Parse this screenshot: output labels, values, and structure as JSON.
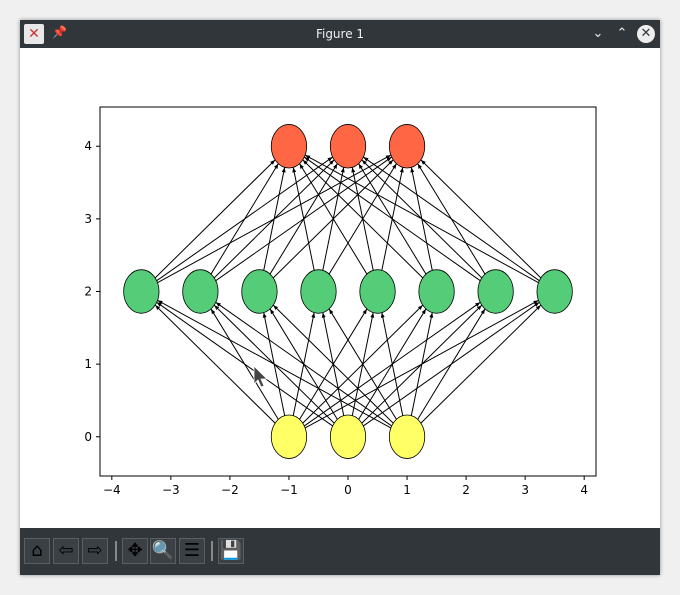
{
  "window": {
    "title": "Figure 1",
    "icons": [
      "matplotlib-app-icon",
      "pin-icon",
      "minimize-icon",
      "maximize-icon",
      "close-icon"
    ]
  },
  "toolbar": {
    "buttons": [
      {
        "name": "home",
        "icon": "home-icon",
        "glyph": "⌂"
      },
      {
        "name": "back",
        "icon": "arrow-left-icon",
        "glyph": "⇦"
      },
      {
        "name": "forward",
        "icon": "arrow-right-icon",
        "glyph": "⇨"
      },
      {
        "name": "pan",
        "icon": "move-icon",
        "glyph": "✥"
      },
      {
        "name": "zoom",
        "icon": "magnifier-icon",
        "glyph": "🔍"
      },
      {
        "name": "configure-subplots",
        "icon": "sliders-icon",
        "glyph": "☰"
      },
      {
        "name": "save",
        "icon": "floppy-disk-icon",
        "glyph": "💾"
      }
    ]
  },
  "chart_data": {
    "type": "diagram",
    "xlim": [
      -4.2,
      4.2
    ],
    "ylim": [
      -0.54,
      4.54
    ],
    "xticks": [
      -4,
      -3,
      -2,
      -1,
      0,
      1,
      2,
      3,
      4
    ],
    "yticks": [
      0,
      1,
      2,
      3,
      4
    ],
    "xtick_labels": [
      "−4",
      "−3",
      "−2",
      "−1",
      "0",
      "1",
      "2",
      "3",
      "4"
    ],
    "ytick_labels": [
      "0",
      "1",
      "2",
      "3",
      "4"
    ],
    "node_radius": 0.3,
    "layers": [
      {
        "y": 0,
        "x": [
          -1,
          0,
          1
        ],
        "color": "#ffff66"
      },
      {
        "y": 2,
        "x": [
          -3.5,
          -2.5,
          -1.5,
          -0.5,
          0.5,
          1.5,
          2.5,
          3.5
        ],
        "color": "#55cc77"
      },
      {
        "y": 4,
        "x": [
          -1,
          0,
          1
        ],
        "color": "#ff6644"
      }
    ],
    "edges": "fully connected between consecutive layers, arrows pointing upward",
    "grid": false
  }
}
